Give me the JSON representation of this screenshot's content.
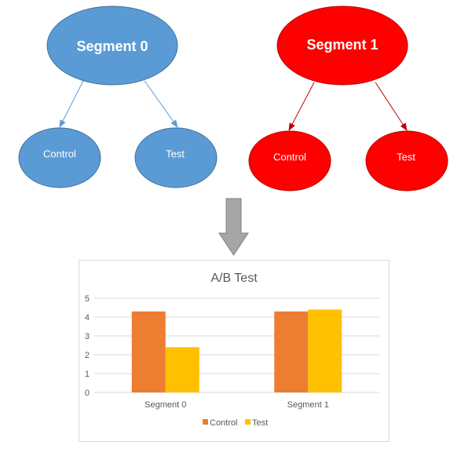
{
  "colors": {
    "blue_fill": "#5b9bd5",
    "blue_stroke": "#41719c",
    "red_fill": "#ff0000",
    "red_stroke": "#c00000",
    "control_bar": "#ed7d31",
    "test_bar": "#ffc000",
    "arrow_fill": "#a6a6a6",
    "arrow_stroke": "#7f7f7f"
  },
  "tree": {
    "segment0": {
      "label": "Segment 0",
      "left_child": "Control",
      "right_child": "Test"
    },
    "segment1": {
      "label": "Segment 1",
      "left_child": "Control",
      "right_child": "Test"
    }
  },
  "flow_arrow": {
    "icon": "down-arrow-icon"
  },
  "chart_data": {
    "type": "bar",
    "title": "A/B Test",
    "categories": [
      "Segment 0",
      "Segment 1"
    ],
    "series": [
      {
        "name": "Control",
        "values": [
          4.3,
          4.3
        ],
        "color": "#ed7d31"
      },
      {
        "name": "Test",
        "values": [
          2.4,
          4.4
        ],
        "color": "#ffc000"
      }
    ],
    "ylim": [
      0,
      5
    ],
    "yticks": [
      "0",
      "1",
      "2",
      "3",
      "4",
      "5"
    ],
    "grid": true,
    "legend": "bottom"
  }
}
